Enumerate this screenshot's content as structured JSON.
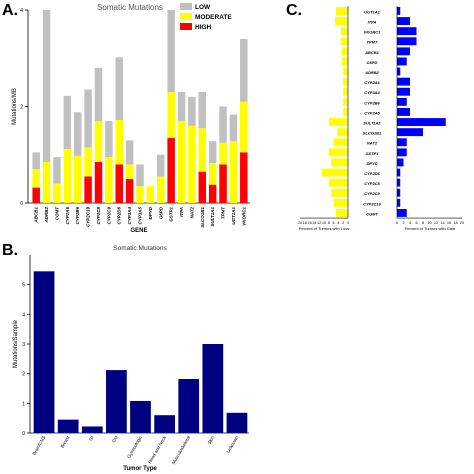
{
  "panels": {
    "a": "A.",
    "b": "B.",
    "c": "C."
  },
  "colors": {
    "low": "#c0c0c0",
    "moderate": "#ffff00",
    "high": "#ff0000",
    "loss": "#ffff00",
    "gain": "#0000ff",
    "tumor_bar": "#000080"
  },
  "chart_data": [
    {
      "id": "A",
      "type": "bar",
      "stacked": true,
      "title": "Somatic Mutations",
      "xlabel": "GENE",
      "ylabel": "Mutations/MB",
      "ylim": [
        0,
        4
      ],
      "yticks": [
        0,
        2,
        4
      ],
      "legend": {
        "position": "top-right",
        "entries": [
          "LOW",
          "MODERATE",
          "HIGH"
        ]
      },
      "categories": [
        "ABCB1",
        "ADRB2",
        "COMT",
        "CYP2A6",
        "CYP2B6",
        "CYP2C19",
        "CYP2C8",
        "CYP2C9",
        "CYP2D6",
        "CYP3A4",
        "CYP3A5",
        "DPYD",
        "G6PD",
        "GSTP1",
        "ITPA",
        "NAT2",
        "SLCO1B1",
        "SULT1A1",
        "TPMT",
        "UGT1A1",
        "VKORC1"
      ],
      "series": [
        {
          "name": "HIGH",
          "values": [
            0.32,
            0.0,
            0.0,
            0.0,
            0.0,
            0.55,
            0.85,
            0.0,
            0.8,
            0.5,
            0.0,
            0.0,
            0.0,
            1.35,
            0.0,
            0.0,
            0.65,
            0.38,
            0.8,
            0.0,
            1.05
          ]
        },
        {
          "name": "MODERATE",
          "values": [
            0.38,
            0.85,
            0.4,
            1.12,
            0.98,
            0.6,
            0.85,
            0.95,
            0.92,
            0.3,
            0.35,
            0.35,
            0.55,
            0.95,
            1.7,
            1.6,
            0.9,
            0.45,
            0.45,
            1.28,
            1.05
          ]
        },
        {
          "name": "LOW",
          "values": [
            0.35,
            3.15,
            0.55,
            1.1,
            0.9,
            1.2,
            1.1,
            0.75,
            1.3,
            0.5,
            0.45,
            0.0,
            0.45,
            1.7,
            0.6,
            0.6,
            0.75,
            0.45,
            0.75,
            0.55,
            1.3
          ]
        }
      ]
    },
    {
      "id": "B",
      "type": "bar",
      "title": "Somatic Mutations",
      "xlabel": "Tumor Type",
      "ylabel": "Mutations/Sample",
      "ylim": [
        0,
        6
      ],
      "yticks": [
        0,
        1,
        2,
        3,
        4,
        5
      ],
      "categories": [
        "Brain/CNS",
        "Breast",
        "GI",
        "GU",
        "Gynecologic",
        "Head and Neck",
        "Musculoskeletal",
        "Skin",
        "Unknown"
      ],
      "values": [
        5.45,
        0.45,
        0.22,
        2.12,
        1.08,
        0.6,
        1.82,
        3.0,
        0.68
      ]
    },
    {
      "id": "C",
      "type": "bar",
      "orientation": "horizontal",
      "categories": [
        "UGT1A1",
        "ITPA",
        "VKORC1",
        "TPMT",
        "ABCB1",
        "G6PD",
        "ADRB2",
        "CYP2A6",
        "CYP3A4",
        "CYP2B6",
        "CYP2A5",
        "SULT1A1",
        "SLCO1B1",
        "NAT2",
        "GSTP1",
        "DPYD",
        "CYP2D6",
        "CYP2C8",
        "CYP2C9",
        "CYP2C19",
        "COMT"
      ],
      "series": [
        {
          "name": "Loss",
          "values": [
            5.0,
            5.5,
            3.0,
            3.0,
            2.5,
            2.5,
            2.0,
            2.0,
            2.0,
            2.0,
            2.0,
            8.0,
            4.5,
            6.0,
            8.0,
            7.0,
            11.0,
            8.0,
            7.0,
            6.0,
            5.0
          ]
        },
        {
          "name": "Gain",
          "values": [
            1.0,
            4.0,
            6.0,
            6.0,
            4.0,
            3.0,
            1.0,
            4.0,
            4.0,
            3.0,
            4.0,
            15.0,
            8.0,
            3.0,
            3.0,
            2.0,
            1.0,
            1.0,
            1.0,
            1.0,
            3.0
          ]
        }
      ],
      "xlabel_left": "Percent of Tumors with Loss",
      "xlabel_right": "Percent of Tumors with Gain",
      "xticks_left": [
        20,
        18,
        16,
        14,
        12,
        10,
        8,
        6,
        4,
        2,
        0
      ],
      "xticks_right": [
        0,
        2,
        4,
        6,
        8,
        10,
        12,
        14,
        16,
        18,
        20
      ],
      "xlim": [
        0,
        20
      ]
    }
  ]
}
